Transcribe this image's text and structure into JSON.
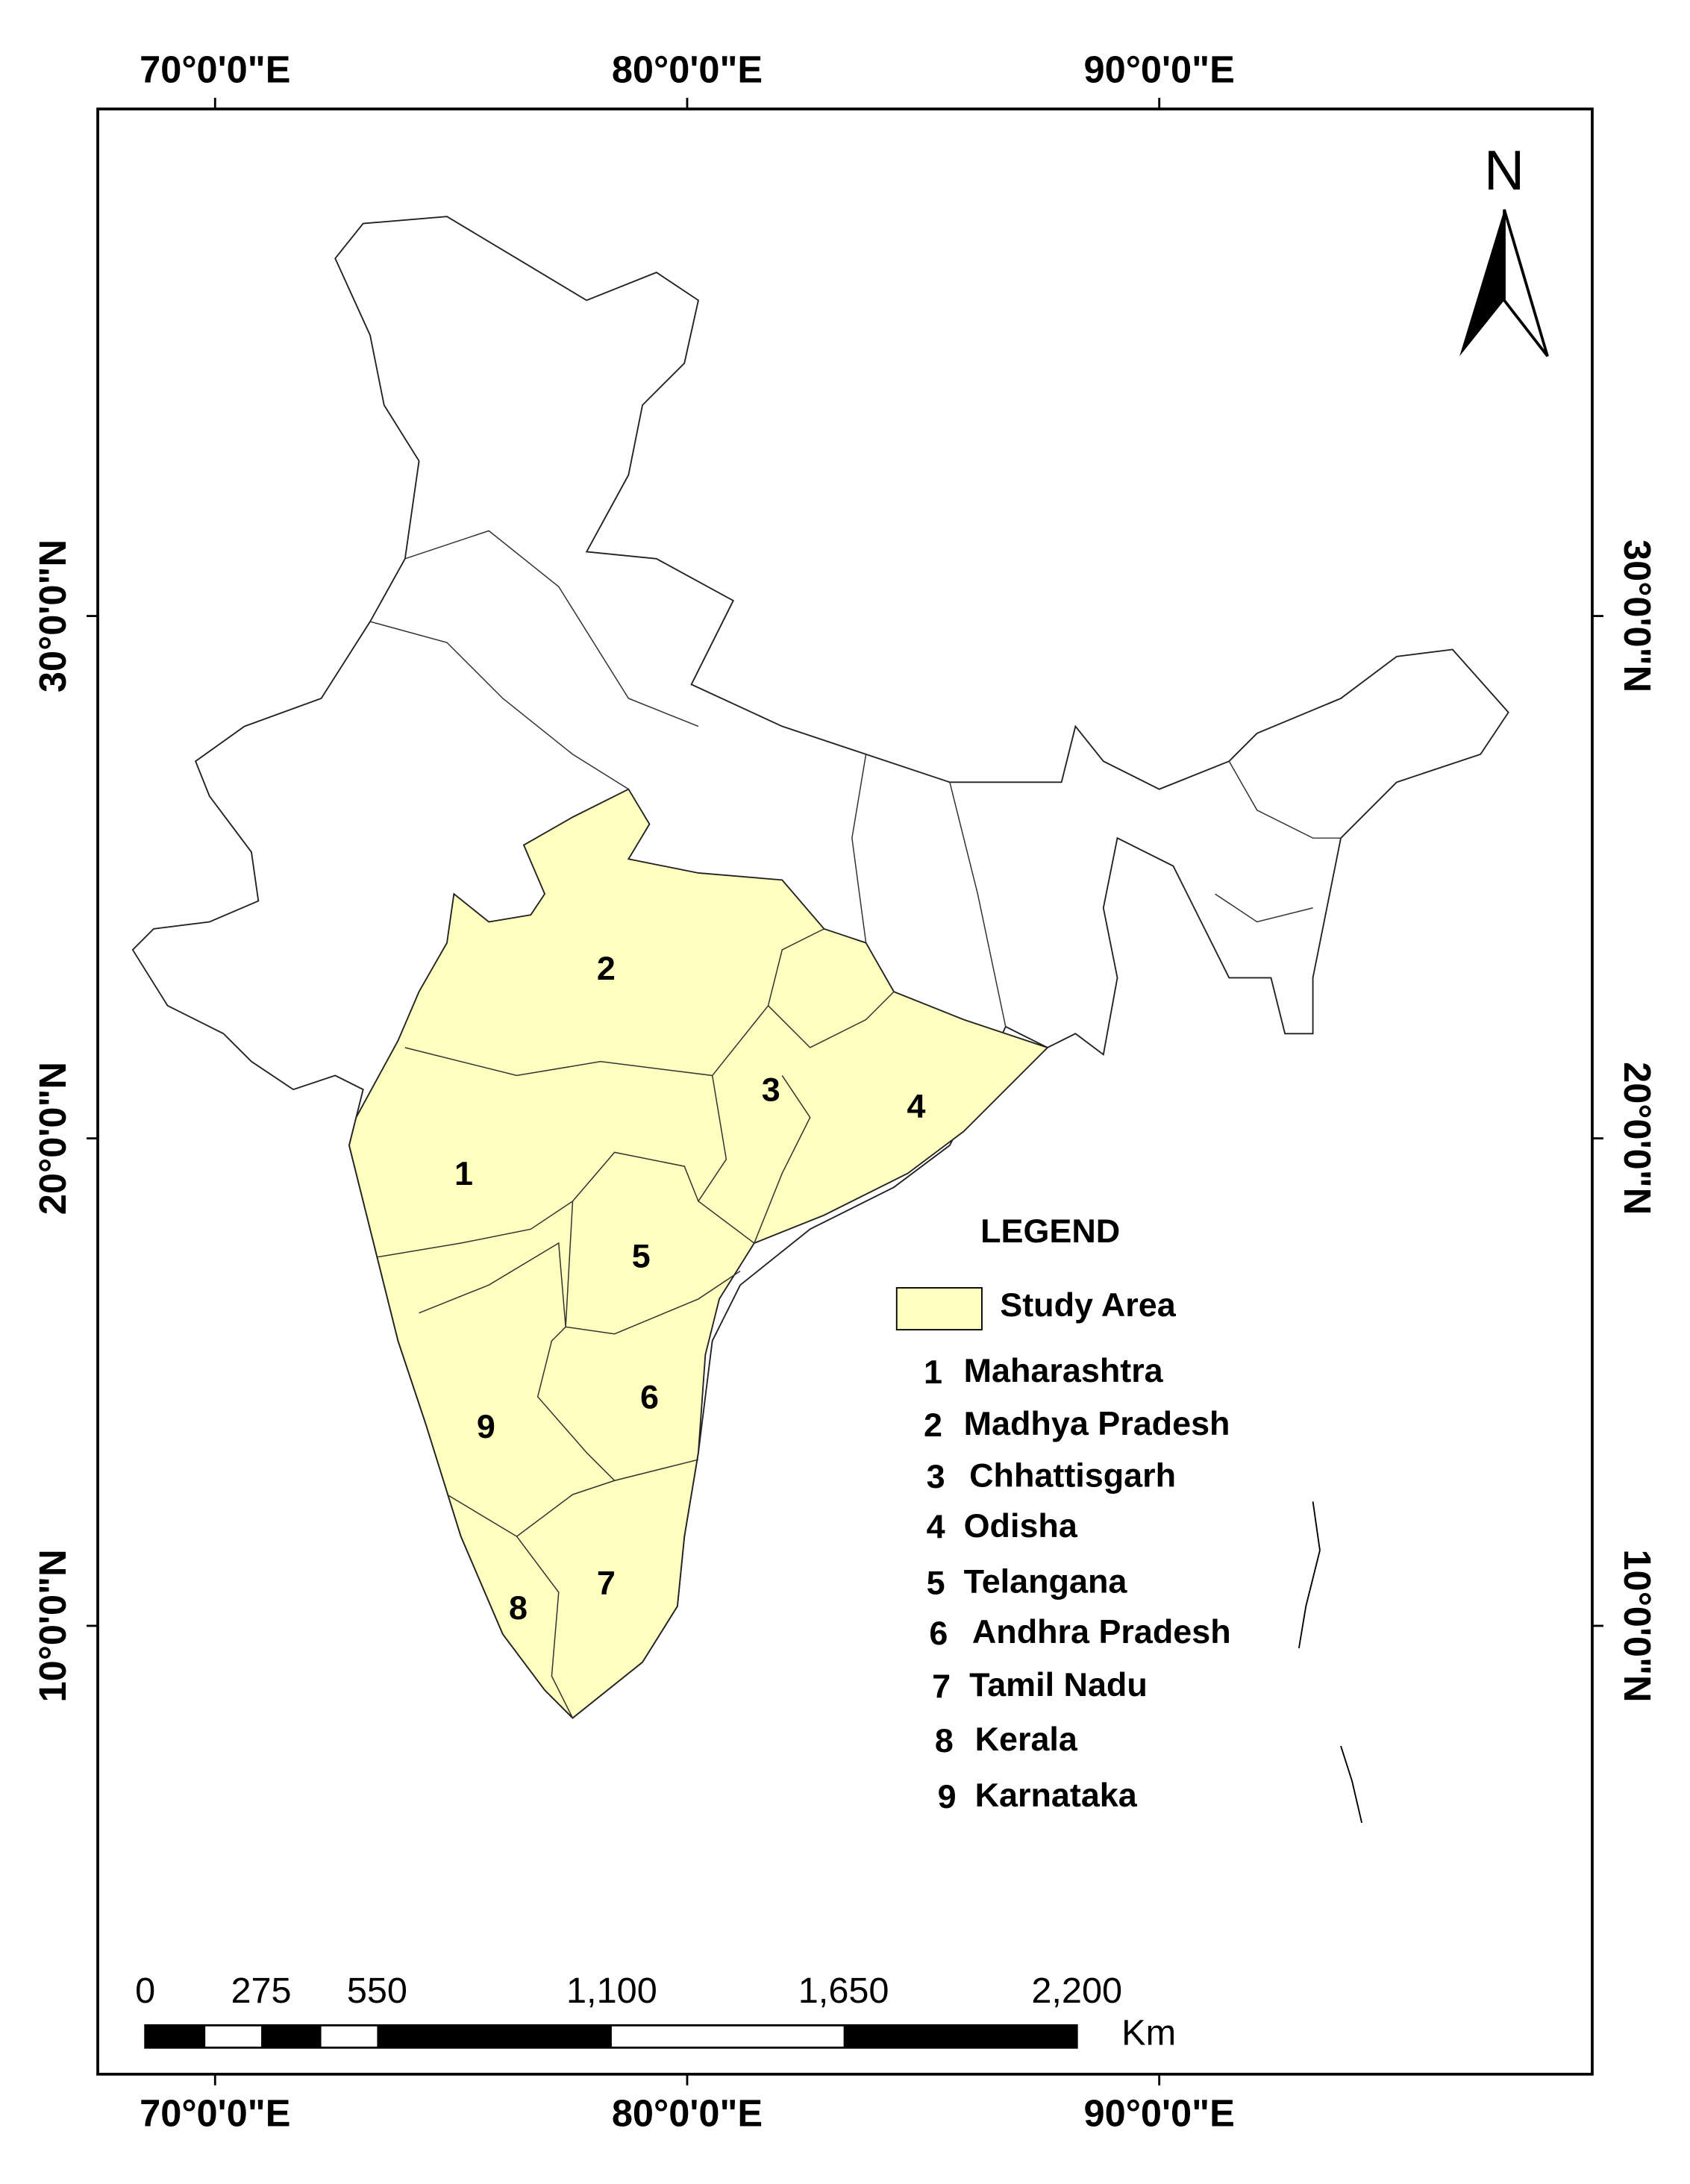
{
  "graticule": {
    "top": [
      "70°0'0\"E",
      "80°0'0\"E",
      "90°0'0\"E"
    ],
    "bottom": [
      "70°0'0\"E",
      "80°0'0\"E",
      "90°0'0\"E"
    ],
    "left": [
      "30°0'0\"N",
      "20°0'0\"N",
      "10°0'0\"N"
    ],
    "right": [
      "30°0'0\"N",
      "20°0'0\"N",
      "10°0'0\"N"
    ]
  },
  "north_arrow": "N",
  "map_labels": [
    "1",
    "2",
    "3",
    "4",
    "5",
    "6",
    "7",
    "8",
    "9"
  ],
  "legend": {
    "title": "LEGEND",
    "swatch_label": "Study Area",
    "items": [
      {
        "number": "1",
        "name": "Maharashtra"
      },
      {
        "number": "2",
        "name": "Madhya Pradesh"
      },
      {
        "number": "3",
        "name": "Chhattisgarh"
      },
      {
        "number": "4",
        "name": "Odisha"
      },
      {
        "number": "5",
        "name": "Telangana"
      },
      {
        "number": "6",
        "name": "Andhra Pradesh"
      },
      {
        "number": "7",
        "name": "Tamil Nadu"
      },
      {
        "number": "8",
        "name": "Kerala"
      },
      {
        "number": "9",
        "name": "Karnataka"
      }
    ]
  },
  "scale_bar": {
    "labels": [
      "0",
      "275",
      "550",
      "1,100",
      "1,650",
      "2,200"
    ],
    "unit": "Km"
  }
}
